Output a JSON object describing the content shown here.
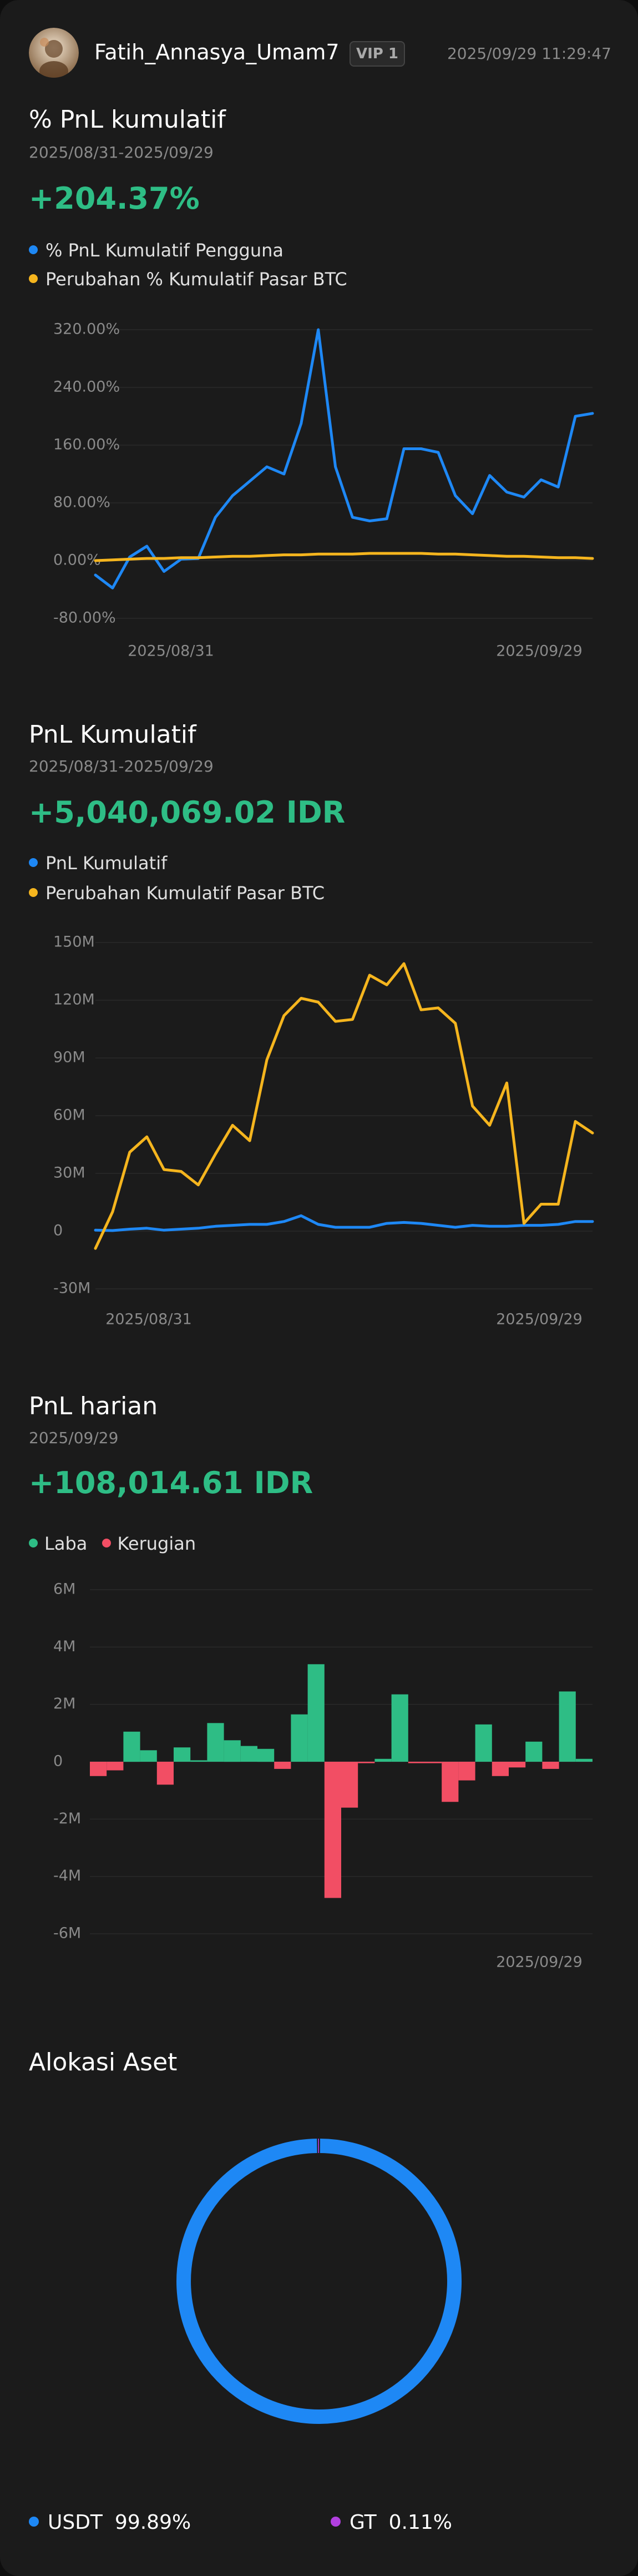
{
  "header": {
    "username": "Fatih_Annasya_Umam7",
    "vip": "VIP 1",
    "timestamp": "2025/09/29 11:29:47",
    "avatar_icon": "user-avatar-icon"
  },
  "colors": {
    "user_line": "#1e88f5",
    "btc_line": "#f5b51e",
    "profit": "#2ebd85",
    "loss": "#f24e64",
    "gt": "#b23fe0",
    "grid": "#2a2a2a",
    "axis_text": "#8a8a8a"
  },
  "sections": {
    "pnl_pct": {
      "title": "% PnL kumulatif",
      "date_range": "2025/08/31-2025/09/29",
      "value": "+204.37%",
      "legend": [
        "% PnL Kumulatif Pengguna",
        "Perubahan % Kumulatif Pasar BTC"
      ]
    },
    "pnl_cum": {
      "title": "PnL Kumulatif",
      "date_range": "2025/08/31-2025/09/29",
      "value": "+5,040,069.02 IDR",
      "legend": [
        "PnL Kumulatif",
        "Perubahan Kumulatif Pasar BTC"
      ]
    },
    "pnl_daily": {
      "title": "PnL harian",
      "date": "2025/09/29",
      "value": "+108,014.61 IDR",
      "legend": [
        "Laba",
        "Kerugian"
      ]
    },
    "allocation": {
      "title": "Alokasi Aset",
      "items": [
        {
          "name": "USDT",
          "pct": "99.89%"
        },
        {
          "name": "GT",
          "pct": "0.11%"
        }
      ]
    }
  },
  "chart_data": [
    {
      "type": "line",
      "ylim": [
        -80,
        320
      ],
      "yticks": [
        -80,
        0,
        80,
        160,
        240,
        320
      ],
      "ytick_labels": [
        "-80.00%",
        "0.00%",
        "80.00%",
        "160.00%",
        "240.00%",
        "320.00%"
      ],
      "xtick_labels": [
        "2025/08/31",
        "2025/09/29"
      ],
      "series": [
        {
          "name": "% PnL Kumulatif Pengguna",
          "values": [
            -20,
            -38,
            5,
            20,
            -15,
            2,
            3,
            60,
            90,
            110,
            130,
            120,
            190,
            320,
            130,
            60,
            55,
            58,
            155,
            155,
            150,
            90,
            65,
            118,
            95,
            88,
            112,
            102,
            200,
            204
          ]
        },
        {
          "name": "Perubahan % Kumulatif Pasar BTC",
          "values": [
            0,
            1,
            2,
            3,
            3,
            4,
            4,
            5,
            6,
            6,
            7,
            8,
            8,
            9,
            9,
            9,
            10,
            10,
            10,
            10,
            9,
            9,
            8,
            7,
            6,
            6,
            5,
            4,
            4,
            3
          ]
        }
      ]
    },
    {
      "type": "line",
      "ylim": [
        -30,
        150
      ],
      "yticks": [
        -30,
        0,
        30,
        60,
        90,
        120,
        150
      ],
      "ytick_labels": [
        "-30M",
        "0",
        "30M",
        "60M",
        "90M",
        "120M",
        "150M"
      ],
      "xtick_labels": [
        "2025/08/31",
        "2025/09/29"
      ],
      "series": [
        {
          "name": "PnL Kumulatif",
          "values": [
            0.5,
            0.3,
            1,
            1.5,
            0.5,
            1,
            1.5,
            2.5,
            3,
            3.5,
            3.5,
            5,
            8,
            3.5,
            2,
            2,
            2,
            4,
            4.5,
            4,
            3,
            2,
            3,
            2.5,
            2.5,
            3,
            3,
            3.5,
            5,
            5
          ]
        },
        {
          "name": "Perubahan Kumulatif Pasar BTC",
          "values": [
            -9,
            10,
            41,
            49,
            32,
            31,
            24,
            40,
            55,
            47,
            89,
            112,
            121,
            119,
            109,
            110,
            133,
            128,
            139,
            115,
            116,
            108,
            65,
            55,
            77,
            4,
            14,
            14,
            57,
            51
          ]
        }
      ]
    },
    {
      "type": "bar",
      "ylim": [
        -6,
        6
      ],
      "yticks": [
        -6,
        -4,
        -2,
        0,
        2,
        4,
        6
      ],
      "ytick_labels": [
        "-6M",
        "-4M",
        "-2M",
        "0",
        "2M",
        "4M",
        "6M"
      ],
      "xtick_labels": [
        "2025/09/29"
      ],
      "series": [
        {
          "name": "Laba",
          "values": [
            -0.5,
            -0.3,
            1.05,
            0.4,
            -0.8,
            0.5,
            0.05,
            1.35,
            0.75,
            0.55,
            0.45,
            -0.25,
            1.65,
            3.4,
            -4.75,
            -1.6,
            -0.05,
            0.1,
            2.35,
            -0.05,
            -0.05,
            -1.4,
            -0.65,
            1.3,
            -0.5,
            -0.2,
            0.7,
            -0.25,
            2.45,
            0.1
          ]
        }
      ]
    },
    {
      "type": "pie",
      "values": [
        99.89,
        0.11
      ],
      "labels": [
        "USDT",
        "GT"
      ],
      "colors": [
        "#1e88f5",
        "#b23fe0"
      ]
    }
  ]
}
